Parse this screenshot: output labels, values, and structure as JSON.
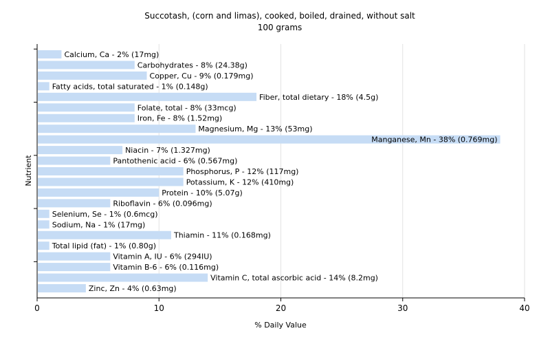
{
  "chart_data": {
    "type": "bar",
    "orientation": "horizontal",
    "title": "Succotash, (corn and limas), cooked, boiled, drained, without salt",
    "subtitle": "100 grams",
    "xlabel": "% Daily Value",
    "ylabel": "Nutrient",
    "xlim": [
      0,
      40
    ],
    "xticks": [
      0,
      10,
      20,
      30,
      40
    ],
    "grid": true,
    "bar_color": "#c6dcf5",
    "bars": [
      {
        "label": "Calcium, Ca - 2% (17mg)",
        "value": 2
      },
      {
        "label": "Carbohydrates - 8% (24.38g)",
        "value": 8
      },
      {
        "label": "Copper, Cu - 9% (0.179mg)",
        "value": 9
      },
      {
        "label": "Fatty acids, total saturated - 1% (0.148g)",
        "value": 1
      },
      {
        "label": "Fiber, total dietary - 18% (4.5g)",
        "value": 18
      },
      {
        "label": "Folate, total - 8% (33mcg)",
        "value": 8
      },
      {
        "label": "Iron, Fe - 8% (1.52mg)",
        "value": 8
      },
      {
        "label": "Magnesium, Mg - 13% (53mg)",
        "value": 13
      },
      {
        "label": "Manganese, Mn - 38% (0.769mg)",
        "value": 38
      },
      {
        "label": "Niacin - 7% (1.327mg)",
        "value": 7
      },
      {
        "label": "Pantothenic acid - 6% (0.567mg)",
        "value": 6
      },
      {
        "label": "Phosphorus, P - 12% (117mg)",
        "value": 12
      },
      {
        "label": "Potassium, K - 12% (410mg)",
        "value": 12
      },
      {
        "label": "Protein - 10% (5.07g)",
        "value": 10
      },
      {
        "label": "Riboflavin - 6% (0.096mg)",
        "value": 6
      },
      {
        "label": "Selenium, Se - 1% (0.6mcg)",
        "value": 1
      },
      {
        "label": "Sodium, Na - 1% (17mg)",
        "value": 1
      },
      {
        "label": "Thiamin - 11% (0.168mg)",
        "value": 11
      },
      {
        "label": "Total lipid (fat) - 1% (0.80g)",
        "value": 1
      },
      {
        "label": "Vitamin A, IU - 6% (294IU)",
        "value": 6
      },
      {
        "label": "Vitamin B-6 - 6% (0.116mg)",
        "value": 6
      },
      {
        "label": "Vitamin C, total ascorbic acid - 14% (8.2mg)",
        "value": 14
      },
      {
        "label": "Zinc, Zn - 4% (0.63mg)",
        "value": 4
      }
    ]
  }
}
